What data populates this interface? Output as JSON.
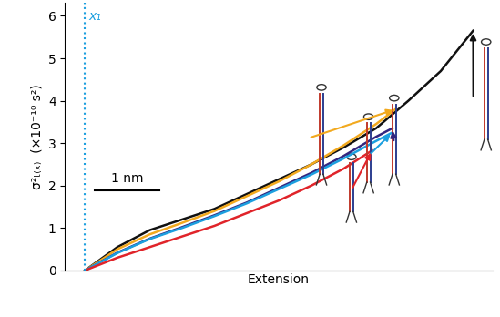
{
  "chart_data": {
    "type": "line",
    "x_label": "Extension",
    "y_label": "σ²ₜ₍ₓ₎  (×10⁻¹⁰ s²)",
    "xlim": [
      -0.31,
      6.3
    ],
    "ylim": [
      0,
      6.3
    ],
    "yticks": [
      0,
      1,
      2,
      3,
      4,
      5,
      6
    ],
    "tick_labels": "y",
    "grid": false,
    "annotations": [
      {
        "text": "x₁",
        "x": 0
      },
      {
        "text": "1 nm",
        "length": 1
      }
    ],
    "series": [
      {
        "color": "#111111",
        "x": [
          0,
          0.5,
          1,
          1.5,
          2,
          2.5,
          3,
          3.5,
          4,
          4.5,
          5,
          5.5,
          6
        ],
        "values": [
          0,
          0.55,
          0.95,
          1.2,
          1.45,
          1.8,
          2.15,
          2.5,
          2.9,
          3.35,
          4.0,
          4.7,
          5.65
        ]
      },
      {
        "color": "#f2a91e",
        "x": [
          0,
          0.5,
          1,
          1.5,
          2,
          2.5,
          3,
          3.5,
          4,
          4.5,
          4.8
        ],
        "values": [
          0,
          0.5,
          0.85,
          1.12,
          1.4,
          1.75,
          2.1,
          2.5,
          2.95,
          3.45,
          3.8
        ]
      },
      {
        "color": "#33267f",
        "x": [
          0,
          0.5,
          1,
          1.5,
          2,
          2.5,
          3,
          3.5,
          4,
          4.5,
          4.75
        ],
        "values": [
          0,
          0.42,
          0.75,
          1.02,
          1.3,
          1.6,
          1.95,
          2.3,
          2.7,
          3.15,
          3.35
        ]
      },
      {
        "color": "#1c9fdf",
        "x": [
          0,
          0.5,
          1,
          1.5,
          2,
          2.5,
          3,
          3.5,
          4,
          4.5,
          4.75
        ],
        "values": [
          0,
          0.41,
          0.74,
          1.0,
          1.28,
          1.58,
          1.92,
          2.26,
          2.64,
          3.05,
          3.25
        ]
      },
      {
        "color": "#e0242a",
        "x": [
          0,
          0.5,
          1,
          1.5,
          2,
          2.5,
          3,
          3.5,
          4,
          4.44
        ],
        "values": [
          0,
          0.3,
          0.55,
          0.8,
          1.05,
          1.35,
          1.65,
          2.0,
          2.4,
          2.83
        ]
      }
    ]
  }
}
